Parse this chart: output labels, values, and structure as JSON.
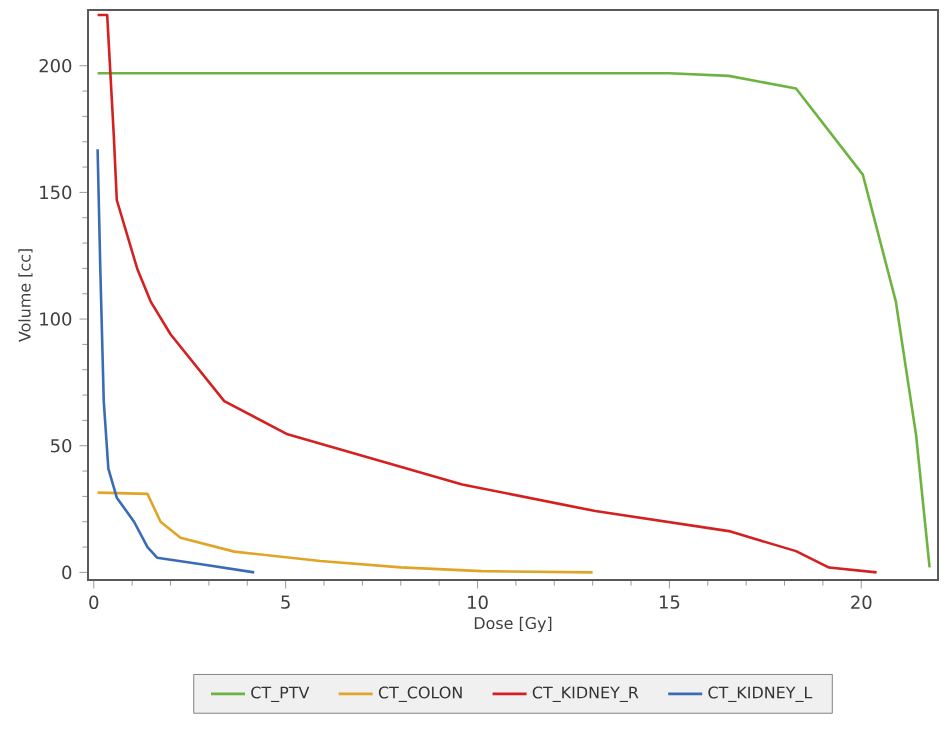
{
  "chart_data": {
    "type": "line",
    "xlabel": "Dose [Gy]",
    "ylabel": "Volume [cc]",
    "xlim": [
      -0.15,
      22
    ],
    "ylim": [
      -3,
      222
    ],
    "xticks": [
      0,
      5,
      10,
      15,
      20
    ],
    "yticks": [
      0,
      50,
      100,
      150,
      200
    ],
    "legend": "bottom",
    "marker": "none",
    "line_style": "solid",
    "series": [
      {
        "name": "CT_PTV",
        "color": "#6db33f",
        "x": [
          0.1,
          5,
          10,
          15,
          16.55,
          18.3,
          20.04,
          20.9,
          21.43,
          21.78
        ],
        "values": [
          197,
          197,
          197,
          197,
          196,
          191,
          157,
          107,
          54,
          2
        ]
      },
      {
        "name": "CT_COLON",
        "color": "#e0a526",
        "x": [
          0.1,
          1.4,
          1.74,
          2.26,
          3.66,
          5.9,
          8.0,
          10.1,
          13.0
        ],
        "values": [
          31.5,
          31,
          20,
          13.7,
          8.2,
          4.5,
          2.0,
          0.5,
          0
        ]
      },
      {
        "name": "CT_KIDNEY_R",
        "color": "#d42020",
        "x": [
          0.1,
          0.35,
          0.52,
          0.6,
          1.13,
          1.48,
          2.0,
          3.4,
          5.05,
          9.6,
          13.07,
          16.55,
          18.3,
          19.16,
          20.4
        ],
        "values": [
          220,
          220,
          173,
          147,
          120,
          107,
          94,
          67.6,
          54.5,
          34.7,
          24.2,
          16.3,
          8.4,
          1.9,
          0
        ]
      },
      {
        "name": "CT_KIDNEY_L",
        "color": "#3a6cb5",
        "x": [
          0.1,
          0.17,
          0.26,
          0.38,
          0.6,
          1.05,
          1.4,
          1.65,
          2.8,
          4.18
        ],
        "values": [
          167,
          120,
          67.6,
          41,
          29.5,
          20,
          10,
          5.8,
          3.2,
          0
        ]
      }
    ]
  }
}
